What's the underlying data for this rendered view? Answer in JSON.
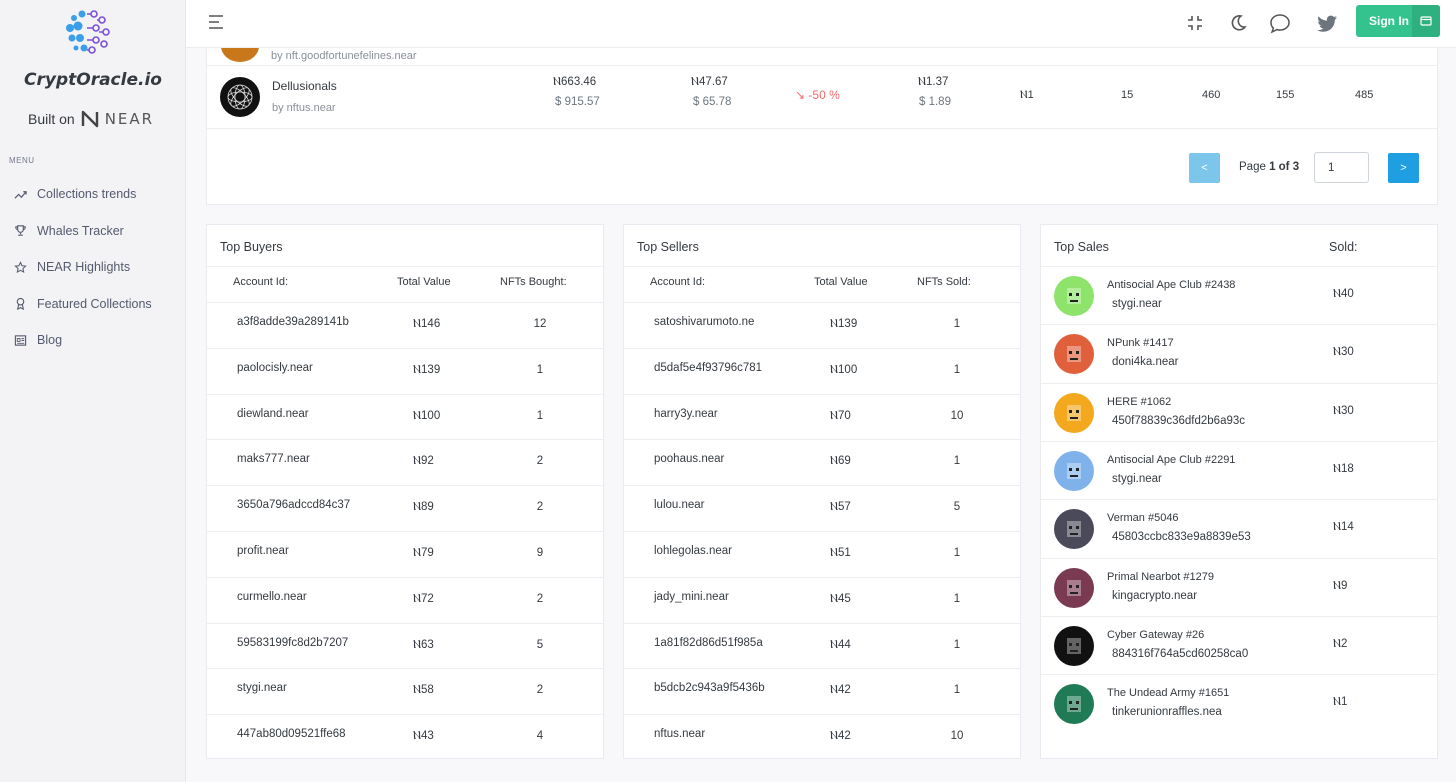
{
  "brand": {
    "name": "CryptOracle.io",
    "built_on": "Built on",
    "near": "NEAR"
  },
  "menu": {
    "title": "MENU",
    "items": [
      {
        "label": "Collections trends",
        "icon": "trending-up-icon"
      },
      {
        "label": "Whales Tracker",
        "icon": "trophy-icon"
      },
      {
        "label": "NEAR Highlights",
        "icon": "star-icon"
      },
      {
        "label": "Featured Collections",
        "icon": "award-icon"
      },
      {
        "label": "Blog",
        "icon": "article-icon"
      }
    ]
  },
  "header": {
    "signin": "Sign In"
  },
  "collection": {
    "partial_by": "by nft.goodfortunefelines.near",
    "name": "Dellusionals",
    "by": "by nftus.near",
    "floor_near": "Ⲛ663.46",
    "floor_usd": "$ 915.57",
    "avg_near": "Ⲛ47.67",
    "avg_usd": "$ 65.78",
    "change": "-50 %",
    "last_near": "Ⲛ1.37",
    "last_usd": "$ 1.89",
    "min": "Ⲛ1",
    "n1": "15",
    "n2": "460",
    "n3": "155",
    "n4": "485"
  },
  "pager": {
    "prev": "<",
    "page_label": "Page",
    "page_of": "1 of 3",
    "input": "1",
    "next": ">"
  },
  "top_buyers": {
    "title": "Top Buyers",
    "cols": [
      "Account Id:",
      "Total Value",
      "NFTs Bought:"
    ],
    "rows": [
      {
        "account": "a3f8adde39a289141b",
        "value": "Ⲛ146",
        "count": "12"
      },
      {
        "account": "paolocisly.near",
        "value": "Ⲛ139",
        "count": "1"
      },
      {
        "account": "diewland.near",
        "value": "Ⲛ100",
        "count": "1"
      },
      {
        "account": "maks777.near",
        "value": "Ⲛ92",
        "count": "2"
      },
      {
        "account": "3650a796adccd84c37",
        "value": "Ⲛ89",
        "count": "2"
      },
      {
        "account": "profit.near",
        "value": "Ⲛ79",
        "count": "9"
      },
      {
        "account": "curmello.near",
        "value": "Ⲛ72",
        "count": "2"
      },
      {
        "account": "59583199fc8d2b7207",
        "value": "Ⲛ63",
        "count": "5"
      },
      {
        "account": "stygi.near",
        "value": "Ⲛ58",
        "count": "2"
      },
      {
        "account": "447ab80d09521ffe68",
        "value": "Ⲛ43",
        "count": "4"
      }
    ]
  },
  "top_sellers": {
    "title": "Top Sellers",
    "cols": [
      "Account Id:",
      "Total Value",
      "NFTs Sold:"
    ],
    "rows": [
      {
        "account": "satoshivarumoto.ne",
        "value": "Ⲛ139",
        "count": "1"
      },
      {
        "account": "d5daf5e4f93796c781",
        "value": "Ⲛ100",
        "count": "1"
      },
      {
        "account": "harry3y.near",
        "value": "Ⲛ70",
        "count": "10"
      },
      {
        "account": "poohaus.near",
        "value": "Ⲛ69",
        "count": "1"
      },
      {
        "account": "lulou.near",
        "value": "Ⲛ57",
        "count": "5"
      },
      {
        "account": "lohlegolas.near",
        "value": "Ⲛ51",
        "count": "1"
      },
      {
        "account": "jady_mini.near",
        "value": "Ⲛ45",
        "count": "1"
      },
      {
        "account": "1a81f82d86d51f985a",
        "value": "Ⲛ44",
        "count": "1"
      },
      {
        "account": "b5dcb2c943a9f5436b",
        "value": "Ⲛ42",
        "count": "1"
      },
      {
        "account": "nftus.near",
        "value": "Ⲛ42",
        "count": "10"
      }
    ]
  },
  "top_sales": {
    "title": "Top Sales",
    "sold_label": "Sold:",
    "rows": [
      {
        "name": "Antisocial Ape Club #2438",
        "account": "stygi.near",
        "value": "Ⲛ40",
        "color": "#8ee36b"
      },
      {
        "name": "NPunk #1417",
        "account": "doni4ka.near",
        "value": "Ⲛ30",
        "color": "#e0603c"
      },
      {
        "name": "HERE #1062",
        "account": "450f78839c36dfd2b6a93c",
        "value": "Ⲛ30",
        "color": "#f3a81e"
      },
      {
        "name": "Antisocial Ape Club #2291",
        "account": "stygi.near",
        "value": "Ⲛ18",
        "color": "#7fb2ea"
      },
      {
        "name": "Verman #5046",
        "account": "45803ccbc833e9a8839e53",
        "value": "Ⲛ14",
        "color": "#4a4a5a"
      },
      {
        "name": "Primal Nearbot #1279",
        "account": "kingacrypto.near",
        "value": "Ⲛ9",
        "color": "#7a3a52"
      },
      {
        "name": "Cyber Gateway #26",
        "account": "884316f764a5cd60258ca0",
        "value": "Ⲛ2",
        "color": "#111111"
      },
      {
        "name": "The Undead Army #1651",
        "account": "tinkerunionraffles.nea",
        "value": "Ⲛ1",
        "color": "#1f7a55"
      }
    ]
  }
}
